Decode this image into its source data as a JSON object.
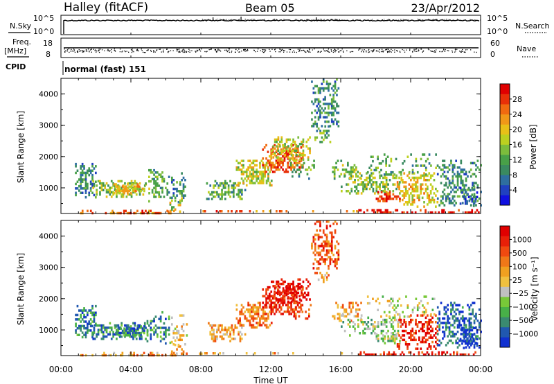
{
  "header": {
    "station": "Halley (fitACF)",
    "beam": "Beam 05",
    "date": "23/Apr/2012"
  },
  "labels": {
    "nsky": "N.Sky",
    "nsearch": "N.Search",
    "freq": "Freq.",
    "freq_unit": "[MHz]",
    "nave": "Nave",
    "cpid": "CPID",
    "cpid_text": "normal (fast) 151"
  },
  "chart_data": [
    {
      "type": "line",
      "name": "nsky-panel",
      "left_ticks": [
        "10^5",
        "10^0"
      ],
      "right_ticks": [
        "10^5",
        "10^0"
      ],
      "description_level": "near-constant high"
    },
    {
      "type": "line",
      "name": "freq-panel",
      "left_ticks": [
        "18",
        "8"
      ],
      "right_ticks": [
        "60",
        "0"
      ],
      "ylim_left": [
        8,
        18
      ],
      "ylim_right": [
        0,
        60
      ]
    },
    {
      "type": "heatmap",
      "name": "power",
      "ylabel": "Slant Range [km]",
      "yticks": [
        "4000",
        "3000",
        "2000",
        "1000"
      ],
      "ylim": [
        180,
        4500
      ],
      "xlim": [
        0,
        24
      ],
      "colorbar_label": "Power [dB]",
      "colorbar_ticks": [
        "28",
        "24",
        "20",
        "16",
        "12",
        "8",
        "4"
      ],
      "colorbar_range": [
        0,
        32
      ],
      "colors": [
        "#1010e0",
        "#2040c0",
        "#2e6ea0",
        "#3a8a60",
        "#48a048",
        "#7cbc3c",
        "#bcd020",
        "#e8c018",
        "#f09818",
        "#f06a10",
        "#e83008",
        "#e00000"
      ]
    },
    {
      "type": "heatmap",
      "name": "velocity",
      "ylabel": "Slant Range [km]",
      "yticks": [
        "4000",
        "3000",
        "2000",
        "1000"
      ],
      "ylim": [
        180,
        4500
      ],
      "xlim": [
        0,
        24
      ],
      "colorbar_label": "Velocity [m s⁻¹]",
      "colorbar_ticks": [
        "1000",
        "500",
        "100",
        "25",
        "−25",
        "−100",
        "−500",
        "−1000"
      ],
      "colors": [
        "#1030d0",
        "#2058b0",
        "#3a8a70",
        "#48b048",
        "#78c838",
        "#c0c0c0",
        "#f0c040",
        "#f0a020",
        "#f07818",
        "#f04a10",
        "#e82008",
        "#e00000"
      ]
    }
  ],
  "xaxis": {
    "ticks": [
      "00:00",
      "04:00",
      "08:00",
      "12:00",
      "16:00",
      "20:00",
      "00:00"
    ],
    "label": "Time UT"
  }
}
